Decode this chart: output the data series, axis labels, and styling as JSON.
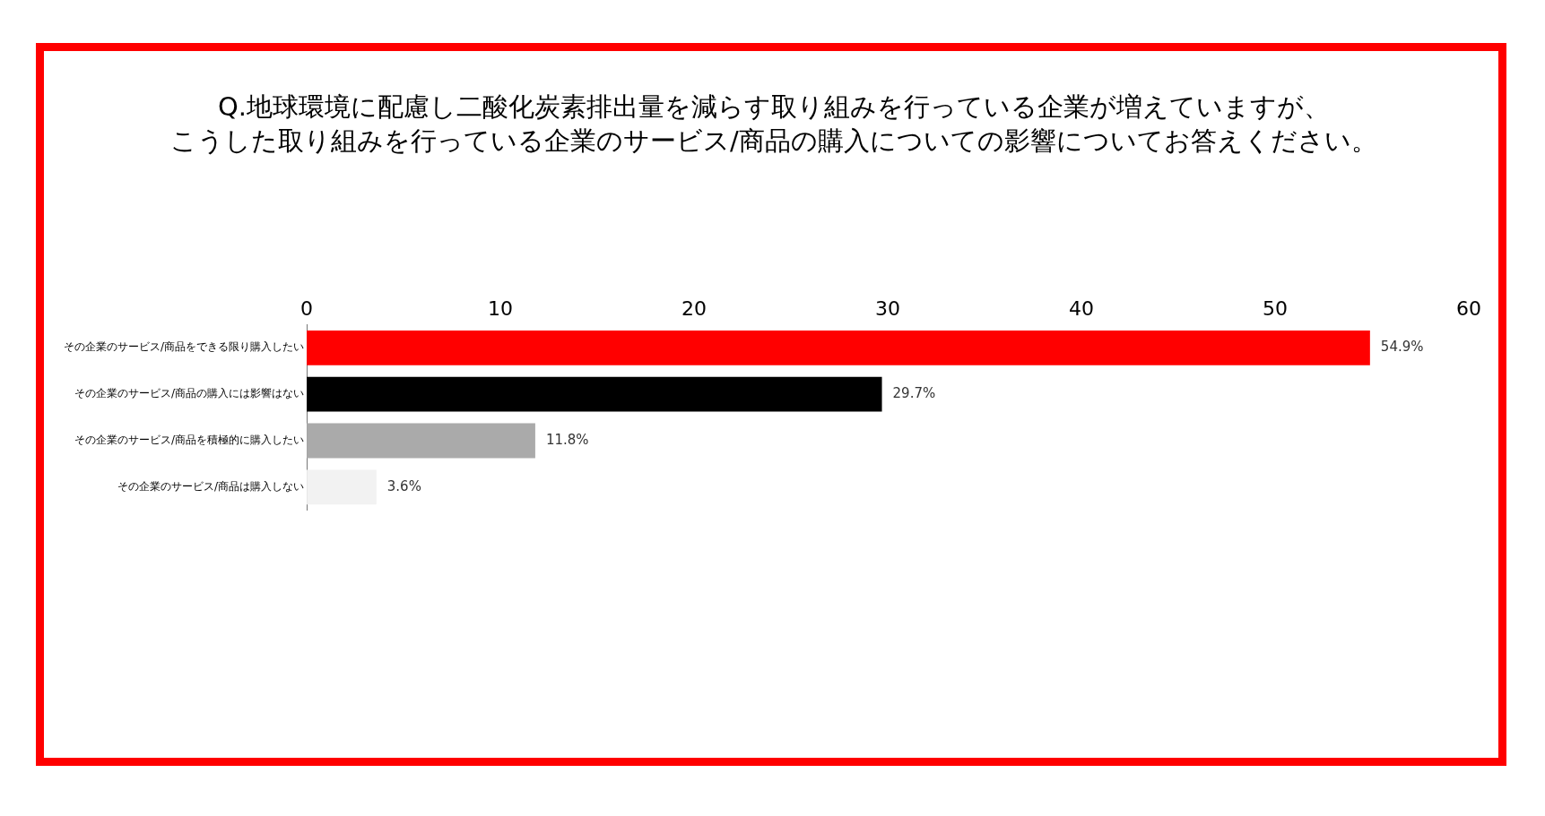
{
  "chart_data": {
    "type": "bar",
    "orientation": "horizontal",
    "title": "Q.地球環境に配慮し二酸化炭素排出量を減らす取り組みを行っている企業が増えていますが、",
    "subtitle": "こうした取り組みを行っている企業のサービス/商品の購入についての影響についてお答えください。",
    "categories": [
      "その企業のサービス/商品をできる限り購入したい",
      "その企業のサービス/商品の購入には影響はない",
      "その企業のサービス/商品を積極的に購入したい",
      "その企業のサービス/商品は購入しない"
    ],
    "values": [
      54.9,
      29.7,
      11.8,
      3.6
    ],
    "colors": [
      "#ff0000",
      "#000000",
      "#aaaaaa",
      "#f2f2f2"
    ],
    "value_labels": [
      "54.9%",
      "29.7%",
      "11.8%",
      "3.6%"
    ],
    "xlim": [
      0,
      60
    ],
    "xticks": [
      0,
      10,
      20,
      30,
      40,
      50,
      60
    ],
    "grid": false,
    "legend": false
  }
}
